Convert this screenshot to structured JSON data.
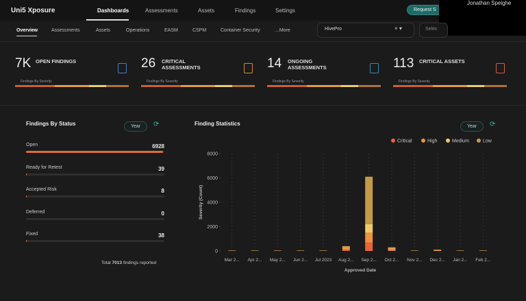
{
  "header": {
    "logo": "Uni5 Xposure",
    "nav": [
      "Dashboards",
      "Assessments",
      "Assets",
      "Findings",
      "Settings"
    ],
    "button": "Request S",
    "user": "Jonathan Speighe"
  },
  "subnav": {
    "tabs": [
      "Overview",
      "Assessments",
      "Assets",
      "Operations",
      "EASM",
      "CSPM",
      "Container Security",
      "...More"
    ],
    "search": "HivePro",
    "select": "Selec"
  },
  "kpis": [
    {
      "value": "7K",
      "label": "OPEN FINDINGS",
      "sub": "Findings By Severity"
    },
    {
      "value": "26",
      "label": "CRITICAL ASSESSMENTS",
      "sub": "Findings By Severity"
    },
    {
      "value": "14",
      "label": "ONGOING ASSESSMENTS",
      "sub": "Findings By Severity"
    },
    {
      "value": "113",
      "label": "CRITICAL ASSETS",
      "sub": "Findings By Severity"
    }
  ],
  "status": {
    "title": "Findings By Status",
    "button": "Year",
    "items": [
      {
        "label": "Open",
        "value": 6928
      },
      {
        "label": "Ready for Retest",
        "value": 39
      },
      {
        "label": "Accepted Risk",
        "value": 8
      },
      {
        "label": "Deferred",
        "value": 0
      },
      {
        "label": "Fixed",
        "value": 38
      }
    ],
    "footer_prefix": "Total",
    "total": 7013,
    "footer_suffix": "findings reported"
  },
  "chart_data": {
    "type": "bar",
    "stacked": true,
    "title": "Finding Statistics",
    "button": "Year",
    "x_label": "Approved Date",
    "y_label": "Severity (Count)",
    "categories": [
      "Mar 2...",
      "Apr 2...",
      "May 2...",
      "Jun 2...",
      "Jul 2023",
      "Aug 2...",
      "Sep 2...",
      "Oct 2...",
      "Nov 2...",
      "Dec 2...",
      "Jan 2...",
      "Feb 2..."
    ],
    "series": [
      {
        "name": "Critical",
        "color": "#e8643a",
        "values": [
          0,
          0,
          0,
          0,
          0,
          100,
          700,
          50,
          0,
          0,
          0,
          0
        ]
      },
      {
        "name": "High",
        "color": "#f0913c",
        "values": [
          0,
          0,
          0,
          0,
          0,
          150,
          800,
          100,
          0,
          60,
          0,
          0
        ]
      },
      {
        "name": "Medium",
        "color": "#eecb6a",
        "values": [
          0,
          0,
          0,
          0,
          0,
          50,
          700,
          50,
          0,
          0,
          0,
          0
        ]
      },
      {
        "name": "Low",
        "color": "#c49a48",
        "values": [
          40,
          40,
          40,
          40,
          40,
          100,
          3900,
          100,
          40,
          50,
          40,
          40
        ]
      }
    ],
    "ylim": [
      0,
      8000
    ],
    "yticks": [
      0,
      2000,
      4000,
      6000,
      8000
    ]
  }
}
